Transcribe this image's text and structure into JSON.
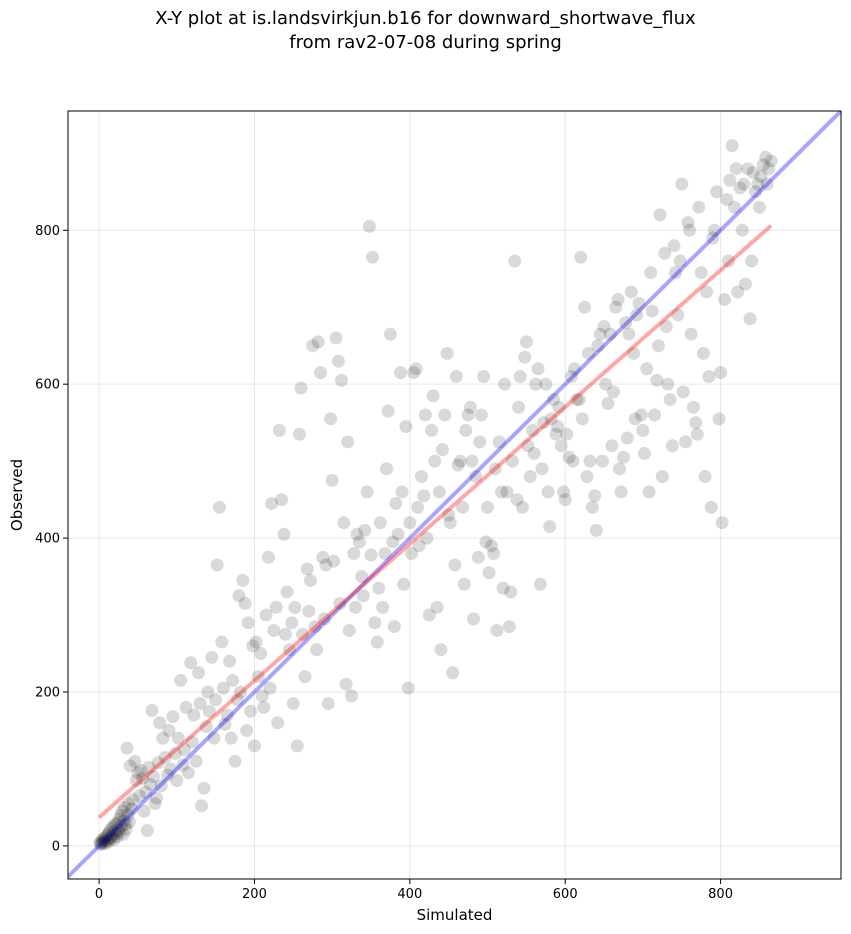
{
  "chart_data": {
    "type": "scatter",
    "title": [
      "X-Y plot at is.landsvirkjun.b16 for downward_shortwave_flux",
      "from rav2-07-08 during spring"
    ],
    "xlabel": "Simulated",
    "ylabel": "Observed",
    "xlim": [
      -40,
      955
    ],
    "ylim": [
      -43,
      955
    ],
    "xticks": [
      0,
      200,
      400,
      600,
      800
    ],
    "yticks": [
      0,
      200,
      400,
      600,
      800
    ],
    "grid": true,
    "lines": [
      {
        "role": "identity",
        "color": "#0000ff",
        "x": [
          -40,
          955
        ],
        "y": [
          -40,
          955
        ]
      },
      {
        "role": "regression",
        "color": "#ff0000",
        "x": [
          0,
          865
        ],
        "y": [
          37,
          806
        ]
      }
    ],
    "points_color": "#000000",
    "points": [
      [
        1,
        3
      ],
      [
        2,
        5
      ],
      [
        3,
        2
      ],
      [
        4,
        8
      ],
      [
        5,
        4
      ],
      [
        6,
        6
      ],
      [
        7,
        10
      ],
      [
        8,
        3
      ],
      [
        9,
        12
      ],
      [
        10,
        7
      ],
      [
        11,
        15
      ],
      [
        12,
        5
      ],
      [
        13,
        18
      ],
      [
        14,
        9
      ],
      [
        15,
        22
      ],
      [
        16,
        11
      ],
      [
        17,
        14
      ],
      [
        18,
        25
      ],
      [
        19,
        8
      ],
      [
        20,
        19
      ],
      [
        21,
        28
      ],
      [
        22,
        16
      ],
      [
        23,
        12
      ],
      [
        24,
        30
      ],
      [
        25,
        21
      ],
      [
        26,
        35
      ],
      [
        27,
        18
      ],
      [
        28,
        40
      ],
      [
        29,
        26
      ],
      [
        30,
        45
      ],
      [
        31,
        15
      ],
      [
        32,
        33
      ],
      [
        33,
        50
      ],
      [
        34,
        28
      ],
      [
        35,
        22
      ],
      [
        36,
        127
      ],
      [
        37,
        40
      ],
      [
        38,
        55
      ],
      [
        39,
        31
      ],
      [
        40,
        104
      ],
      [
        42,
        48
      ],
      [
        44,
        60
      ],
      [
        46,
        110
      ],
      [
        48,
        85
      ],
      [
        50,
        95
      ],
      [
        52,
        65
      ],
      [
        54,
        98
      ],
      [
        56,
        88
      ],
      [
        58,
        45
      ],
      [
        60,
        70
      ],
      [
        62,
        20
      ],
      [
        64,
        102
      ],
      [
        66,
        80
      ],
      [
        68,
        176
      ],
      [
        70,
        90
      ],
      [
        72,
        55
      ],
      [
        74,
        62
      ],
      [
        76,
        108
      ],
      [
        78,
        160
      ],
      [
        80,
        78
      ],
      [
        82,
        140
      ],
      [
        85,
        115
      ],
      [
        88,
        92
      ],
      [
        90,
        150
      ],
      [
        92,
        100
      ],
      [
        95,
        168
      ],
      [
        98,
        120
      ],
      [
        100,
        85
      ],
      [
        102,
        140
      ],
      [
        105,
        215
      ],
      [
        108,
        105
      ],
      [
        110,
        125
      ],
      [
        112,
        180
      ],
      [
        115,
        95
      ],
      [
        118,
        238
      ],
      [
        120,
        135
      ],
      [
        122,
        170
      ],
      [
        125,
        110
      ],
      [
        128,
        225
      ],
      [
        130,
        185
      ],
      [
        132,
        52
      ],
      [
        135,
        75
      ],
      [
        138,
        155
      ],
      [
        140,
        200
      ],
      [
        142,
        175
      ],
      [
        145,
        245
      ],
      [
        148,
        140
      ],
      [
        150,
        190
      ],
      [
        152,
        365
      ],
      [
        155,
        440
      ],
      [
        158,
        265
      ],
      [
        160,
        205
      ],
      [
        162,
        158
      ],
      [
        165,
        170
      ],
      [
        168,
        240
      ],
      [
        170,
        140
      ],
      [
        172,
        215
      ],
      [
        175,
        110
      ],
      [
        178,
        190
      ],
      [
        180,
        325
      ],
      [
        182,
        200
      ],
      [
        185,
        345
      ],
      [
        188,
        315
      ],
      [
        190,
        150
      ],
      [
        192,
        290
      ],
      [
        195,
        175
      ],
      [
        198,
        260
      ],
      [
        200,
        130
      ],
      [
        202,
        265
      ],
      [
        205,
        220
      ],
      [
        208,
        250
      ],
      [
        210,
        195
      ],
      [
        212,
        180
      ],
      [
        215,
        300
      ],
      [
        218,
        375
      ],
      [
        220,
        205
      ],
      [
        222,
        445
      ],
      [
        225,
        280
      ],
      [
        228,
        310
      ],
      [
        230,
        160
      ],
      [
        232,
        540
      ],
      [
        235,
        450
      ],
      [
        238,
        405
      ],
      [
        240,
        275
      ],
      [
        242,
        330
      ],
      [
        245,
        255
      ],
      [
        248,
        290
      ],
      [
        250,
        185
      ],
      [
        252,
        310
      ],
      [
        255,
        130
      ],
      [
        258,
        535
      ],
      [
        260,
        595
      ],
      [
        262,
        275
      ],
      [
        265,
        220
      ],
      [
        268,
        360
      ],
      [
        270,
        305
      ],
      [
        272,
        345
      ],
      [
        275,
        650
      ],
      [
        278,
        285
      ],
      [
        280,
        255
      ],
      [
        282,
        655
      ],
      [
        285,
        615
      ],
      [
        288,
        375
      ],
      [
        290,
        295
      ],
      [
        292,
        365
      ],
      [
        295,
        185
      ],
      [
        298,
        555
      ],
      [
        300,
        475
      ],
      [
        302,
        370
      ],
      [
        305,
        660
      ],
      [
        308,
        630
      ],
      [
        310,
        315
      ],
      [
        312,
        605
      ],
      [
        315,
        420
      ],
      [
        318,
        210
      ],
      [
        320,
        525
      ],
      [
        322,
        280
      ],
      [
        325,
        195
      ],
      [
        328,
        380
      ],
      [
        330,
        310
      ],
      [
        332,
        405
      ],
      [
        335,
        395
      ],
      [
        338,
        350
      ],
      [
        340,
        325
      ],
      [
        342,
        410
      ],
      [
        345,
        460
      ],
      [
        348,
        805
      ],
      [
        350,
        378
      ],
      [
        352,
        765
      ],
      [
        355,
        290
      ],
      [
        358,
        265
      ],
      [
        360,
        335
      ],
      [
        362,
        420
      ],
      [
        365,
        310
      ],
      [
        368,
        380
      ],
      [
        370,
        490
      ],
      [
        372,
        565
      ],
      [
        375,
        665
      ],
      [
        378,
        395
      ],
      [
        380,
        285
      ],
      [
        382,
        445
      ],
      [
        385,
        405
      ],
      [
        388,
        615
      ],
      [
        390,
        460
      ],
      [
        392,
        340
      ],
      [
        395,
        545
      ],
      [
        398,
        205
      ],
      [
        400,
        420
      ],
      [
        402,
        380
      ],
      [
        405,
        615
      ],
      [
        408,
        620
      ],
      [
        410,
        440
      ],
      [
        412,
        390
      ],
      [
        415,
        480
      ],
      [
        418,
        455
      ],
      [
        420,
        560
      ],
      [
        422,
        400
      ],
      [
        425,
        300
      ],
      [
        428,
        540
      ],
      [
        430,
        585
      ],
      [
        432,
        500
      ],
      [
        435,
        310
      ],
      [
        438,
        460
      ],
      [
        440,
        255
      ],
      [
        442,
        515
      ],
      [
        445,
        560
      ],
      [
        448,
        640
      ],
      [
        450,
        430
      ],
      [
        452,
        420
      ],
      [
        455,
        225
      ],
      [
        458,
        365
      ],
      [
        460,
        610
      ],
      [
        462,
        495
      ],
      [
        465,
        500
      ],
      [
        468,
        440
      ],
      [
        470,
        340
      ],
      [
        472,
        540
      ],
      [
        475,
        560
      ],
      [
        478,
        570
      ],
      [
        480,
        500
      ],
      [
        482,
        295
      ],
      [
        485,
        480
      ],
      [
        488,
        375
      ],
      [
        490,
        525
      ],
      [
        492,
        560
      ],
      [
        495,
        610
      ],
      [
        498,
        395
      ],
      [
        500,
        440
      ],
      [
        502,
        355
      ],
      [
        505,
        390
      ],
      [
        508,
        380
      ],
      [
        510,
        490
      ],
      [
        512,
        280
      ],
      [
        515,
        525
      ],
      [
        518,
        460
      ],
      [
        520,
        335
      ],
      [
        522,
        600
      ],
      [
        525,
        460
      ],
      [
        528,
        285
      ],
      [
        530,
        330
      ],
      [
        532,
        500
      ],
      [
        535,
        760
      ],
      [
        538,
        450
      ],
      [
        540,
        570
      ],
      [
        542,
        610
      ],
      [
        545,
        440
      ],
      [
        548,
        635
      ],
      [
        550,
        655
      ],
      [
        552,
        520
      ],
      [
        555,
        480
      ],
      [
        558,
        540
      ],
      [
        560,
        510
      ],
      [
        562,
        600
      ],
      [
        565,
        620
      ],
      [
        568,
        340
      ],
      [
        570,
        490
      ],
      [
        572,
        550
      ],
      [
        575,
        600
      ],
      [
        578,
        460
      ],
      [
        580,
        415
      ],
      [
        582,
        555
      ],
      [
        585,
        580
      ],
      [
        588,
        535
      ],
      [
        590,
        545
      ],
      [
        592,
        570
      ],
      [
        595,
        520
      ],
      [
        598,
        460
      ],
      [
        600,
        450
      ],
      [
        602,
        535
      ],
      [
        605,
        505
      ],
      [
        608,
        610
      ],
      [
        610,
        500
      ],
      [
        612,
        620
      ],
      [
        615,
        580
      ],
      [
        618,
        580
      ],
      [
        620,
        765
      ],
      [
        622,
        555
      ],
      [
        625,
        700
      ],
      [
        628,
        480
      ],
      [
        630,
        640
      ],
      [
        632,
        500
      ],
      [
        635,
        440
      ],
      [
        638,
        455
      ],
      [
        640,
        410
      ],
      [
        642,
        650
      ],
      [
        645,
        665
      ],
      [
        648,
        500
      ],
      [
        650,
        675
      ],
      [
        652,
        600
      ],
      [
        655,
        575
      ],
      [
        658,
        665
      ],
      [
        660,
        520
      ],
      [
        662,
        590
      ],
      [
        665,
        700
      ],
      [
        668,
        710
      ],
      [
        670,
        490
      ],
      [
        672,
        460
      ],
      [
        675,
        505
      ],
      [
        678,
        680
      ],
      [
        680,
        530
      ],
      [
        682,
        665
      ],
      [
        685,
        720
      ],
      [
        688,
        640
      ],
      [
        690,
        555
      ],
      [
        692,
        690
      ],
      [
        695,
        705
      ],
      [
        698,
        560
      ],
      [
        700,
        540
      ],
      [
        702,
        510
      ],
      [
        705,
        620
      ],
      [
        708,
        460
      ],
      [
        710,
        745
      ],
      [
        712,
        695
      ],
      [
        715,
        560
      ],
      [
        718,
        605
      ],
      [
        720,
        650
      ],
      [
        722,
        820
      ],
      [
        725,
        480
      ],
      [
        728,
        770
      ],
      [
        730,
        675
      ],
      [
        732,
        600
      ],
      [
        735,
        580
      ],
      [
        738,
        520
      ],
      [
        740,
        780
      ],
      [
        742,
        745
      ],
      [
        745,
        690
      ],
      [
        748,
        760
      ],
      [
        750,
        860
      ],
      [
        752,
        590
      ],
      [
        755,
        525
      ],
      [
        758,
        810
      ],
      [
        760,
        800
      ],
      [
        762,
        665
      ],
      [
        765,
        570
      ],
      [
        768,
        550
      ],
      [
        770,
        535
      ],
      [
        772,
        830
      ],
      [
        775,
        745
      ],
      [
        778,
        640
      ],
      [
        780,
        480
      ],
      [
        782,
        720
      ],
      [
        785,
        610
      ],
      [
        788,
        440
      ],
      [
        790,
        790
      ],
      [
        792,
        800
      ],
      [
        795,
        850
      ],
      [
        798,
        555
      ],
      [
        800,
        615
      ],
      [
        802,
        420
      ],
      [
        805,
        710
      ],
      [
        808,
        840
      ],
      [
        810,
        760
      ],
      [
        812,
        865
      ],
      [
        815,
        910
      ],
      [
        818,
        830
      ],
      [
        820,
        880
      ],
      [
        822,
        720
      ],
      [
        825,
        855
      ],
      [
        828,
        800
      ],
      [
        830,
        860
      ],
      [
        832,
        730
      ],
      [
        835,
        880
      ],
      [
        838,
        685
      ],
      [
        840,
        760
      ],
      [
        842,
        875
      ],
      [
        845,
        850
      ],
      [
        848,
        860
      ],
      [
        850,
        830
      ],
      [
        852,
        870
      ],
      [
        855,
        885
      ],
      [
        858,
        895
      ],
      [
        860,
        860
      ],
      [
        862,
        880
      ],
      [
        865,
        890
      ]
    ]
  }
}
